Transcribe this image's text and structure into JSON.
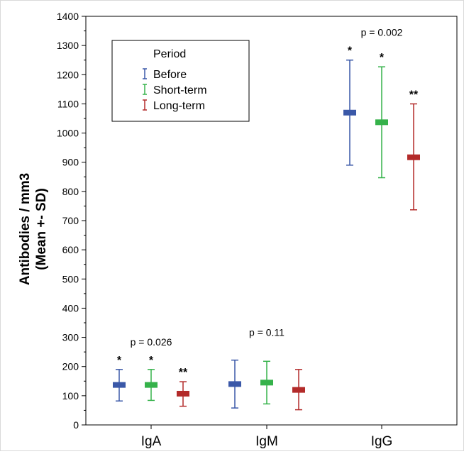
{
  "chart_data": {
    "type": "errorbar",
    "ylabel_line1": "Antibodies / mm3",
    "ylabel_line2": "(Mean +- SD)",
    "ylim": [
      0,
      1400
    ],
    "y_tick_step": 100,
    "y_minor_step": 50,
    "grid": false,
    "categories": [
      "IgA",
      "IgM",
      "IgG"
    ],
    "legend": {
      "title": "Period",
      "placement": "top-left"
    },
    "series": [
      {
        "name": "Before",
        "color": "#3a58a8",
        "mean": [
          137,
          140,
          1070
        ],
        "low": [
          82,
          58,
          890
        ],
        "high": [
          190,
          222,
          1250
        ]
      },
      {
        "name": "Short-term",
        "color": "#35b24a",
        "mean": [
          137,
          145,
          1037
        ],
        "low": [
          84,
          72,
          847
        ],
        "high": [
          190,
          218,
          1227
        ]
      },
      {
        "name": "Long-term",
        "color": "#b32b2a",
        "mean": [
          107,
          120,
          917
        ],
        "low": [
          64,
          52,
          737
        ],
        "high": [
          148,
          190,
          1100
        ]
      }
    ],
    "significance": [
      {
        "category": "IgA",
        "p": "p = 0.026",
        "stars": [
          "*",
          "*",
          "**"
        ]
      },
      {
        "category": "IgM",
        "p": "p = 0.11",
        "stars": [
          "",
          "",
          ""
        ]
      },
      {
        "category": "IgG",
        "p": "p = 0.002",
        "stars": [
          "*",
          "*",
          "**"
        ]
      }
    ]
  }
}
